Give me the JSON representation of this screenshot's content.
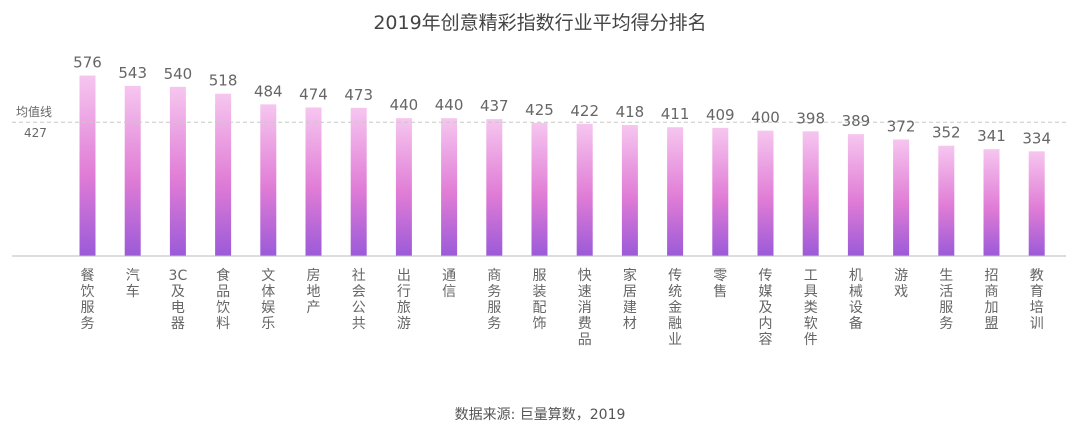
{
  "chart_data": {
    "type": "bar",
    "title": "2019年创意精彩指数行业平均得分排名",
    "source": "数据来源: 巨量算数，2019",
    "categories": [
      "餐饮服务",
      "汽车",
      "3C及电器",
      "食品饮料",
      "文体娱乐",
      "房地产",
      "社会公共",
      "出行旅游",
      "通信",
      "商务服务",
      "服装配饰",
      "快速消费品",
      "家居建材",
      "传统金融业",
      "零售",
      "传媒及内容",
      "工具类软件",
      "机械设备",
      "游戏",
      "生活服务",
      "招商加盟",
      "教育培训"
    ],
    "values": [
      576,
      543,
      540,
      518,
      484,
      474,
      473,
      440,
      440,
      437,
      425,
      422,
      418,
      411,
      409,
      400,
      398,
      389,
      372,
      352,
      341,
      334
    ],
    "average": {
      "label": "均值线",
      "value": 427,
      "value_text": "427"
    },
    "ylim": [
      0,
      600
    ],
    "grid": false,
    "legend": "none",
    "bar_gradient": {
      "top": "#f6c6ef",
      "middle": "#e07cd6",
      "bottom": "#9b5ad8"
    }
  }
}
